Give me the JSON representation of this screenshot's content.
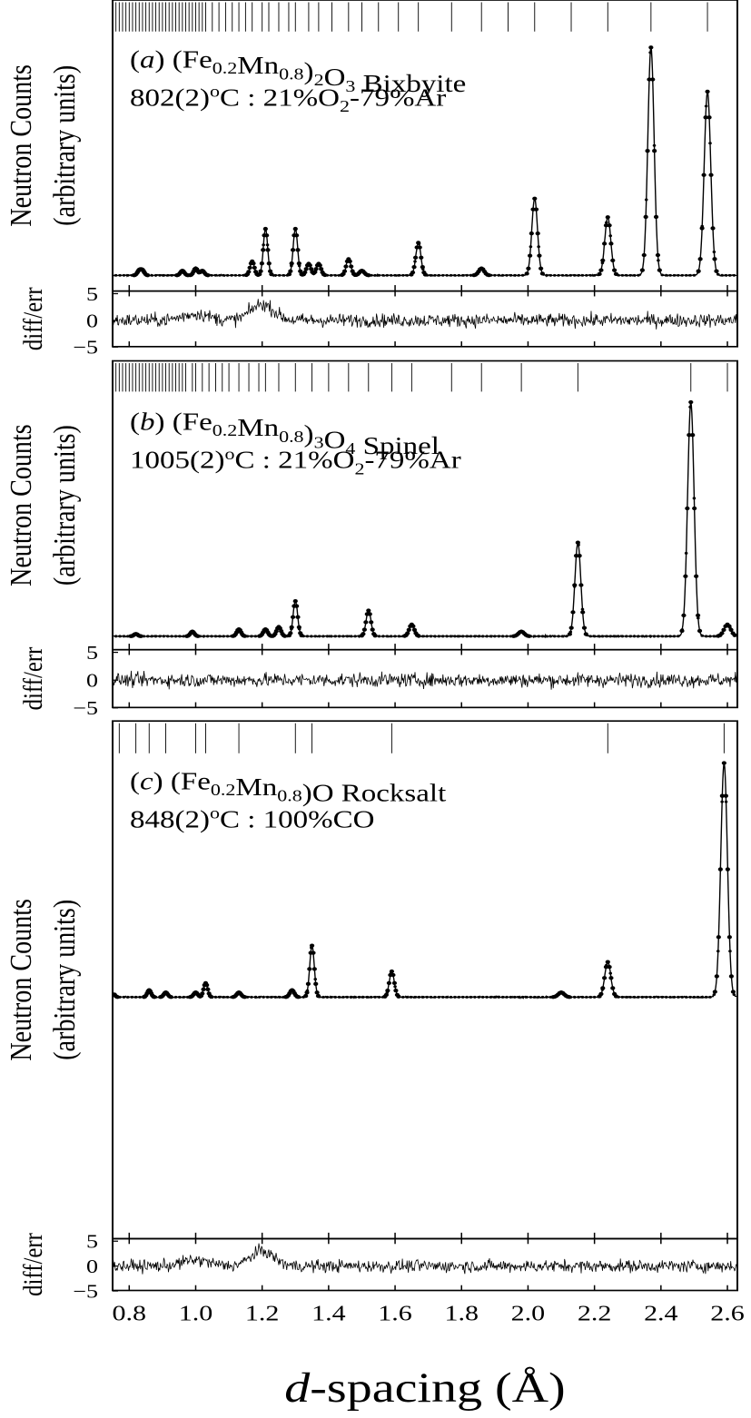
{
  "figure": {
    "xlabel_italic": "d",
    "xlabel_rest": "-spacing (Å)",
    "xlim": [
      0.75,
      2.63
    ],
    "xticks": [
      "0.8",
      "1.0",
      "1.2",
      "1.4",
      "1.6",
      "1.8",
      "2.0",
      "2.2",
      "2.4",
      "2.6"
    ],
    "xtick_values": [
      0.8,
      1.0,
      1.2,
      1.4,
      1.6,
      1.8,
      2.0,
      2.2,
      2.4,
      2.6
    ]
  },
  "chart_data": [
    {
      "type": "line",
      "panel": "a",
      "label_letter": "a",
      "label_phase": "(Fe0.2Mn0.8)2O3 Bixbyite",
      "label_conditions": "802(2)oC : 21%O2-79%Ar",
      "ylabel_line1": "Neutron Counts",
      "ylabel_line2": "(arbitrary units)",
      "diff_label": "diff/err",
      "diff_ticks": [
        "5",
        "0",
        "−5"
      ],
      "diff_tick_values": [
        5,
        0,
        -5
      ],
      "background": 0.03,
      "peaks": [
        {
          "d": 0.83,
          "h": 0.02
        },
        {
          "d": 0.84,
          "h": 0.02
        },
        {
          "d": 0.96,
          "h": 0.02
        },
        {
          "d": 1.0,
          "h": 0.03
        },
        {
          "d": 1.02,
          "h": 0.02
        },
        {
          "d": 1.17,
          "h": 0.06
        },
        {
          "d": 1.21,
          "h": 0.2
        },
        {
          "d": 1.3,
          "h": 0.2
        },
        {
          "d": 1.34,
          "h": 0.05
        },
        {
          "d": 1.37,
          "h": 0.05
        },
        {
          "d": 1.46,
          "h": 0.07
        },
        {
          "d": 1.5,
          "h": 0.02
        },
        {
          "d": 1.67,
          "h": 0.14
        },
        {
          "d": 1.86,
          "h": 0.03
        },
        {
          "d": 2.02,
          "h": 0.33
        },
        {
          "d": 2.24,
          "h": 0.25
        },
        {
          "d": 2.37,
          "h": 0.98
        },
        {
          "d": 2.54,
          "h": 0.79
        }
      ],
      "reflections": [
        0.76,
        0.77,
        0.78,
        0.79,
        0.8,
        0.81,
        0.82,
        0.83,
        0.84,
        0.85,
        0.86,
        0.87,
        0.88,
        0.89,
        0.9,
        0.91,
        0.92,
        0.93,
        0.94,
        0.95,
        0.96,
        0.97,
        0.98,
        0.99,
        1.0,
        1.01,
        1.02,
        1.03,
        1.05,
        1.07,
        1.09,
        1.11,
        1.13,
        1.15,
        1.17,
        1.2,
        1.22,
        1.25,
        1.28,
        1.3,
        1.34,
        1.37,
        1.41,
        1.46,
        1.5,
        1.55,
        1.61,
        1.67,
        1.77,
        1.86,
        1.94,
        2.02,
        2.13,
        2.24,
        2.37,
        2.54
      ]
    },
    {
      "type": "line",
      "panel": "b",
      "label_letter": "b",
      "label_phase": "(Fe0.2Mn0.8)3O4 Spinel",
      "label_conditions": "1005(2)oC : 21%O2-79%Ar",
      "ylabel_line1": "Neutron Counts",
      "ylabel_line2": "(arbitrary units)",
      "diff_label": "diff/err",
      "diff_ticks": [
        "5",
        "0",
        "−5"
      ],
      "diff_tick_values": [
        5,
        0,
        -5
      ],
      "background": 0.03,
      "peaks": [
        {
          "d": 0.82,
          "h": 0.01
        },
        {
          "d": 0.99,
          "h": 0.02
        },
        {
          "d": 1.13,
          "h": 0.03
        },
        {
          "d": 1.21,
          "h": 0.03
        },
        {
          "d": 1.25,
          "h": 0.04
        },
        {
          "d": 1.3,
          "h": 0.15
        },
        {
          "d": 1.52,
          "h": 0.11
        },
        {
          "d": 1.65,
          "h": 0.05
        },
        {
          "d": 1.98,
          "h": 0.02
        },
        {
          "d": 2.15,
          "h": 0.4
        },
        {
          "d": 2.49,
          "h": 1.0
        },
        {
          "d": 2.6,
          "h": 0.05
        }
      ],
      "reflections": [
        0.76,
        0.77,
        0.78,
        0.79,
        0.8,
        0.81,
        0.82,
        0.83,
        0.84,
        0.85,
        0.86,
        0.87,
        0.88,
        0.89,
        0.9,
        0.91,
        0.92,
        0.93,
        0.94,
        0.95,
        0.96,
        0.97,
        0.99,
        1.0,
        1.02,
        1.04,
        1.06,
        1.08,
        1.1,
        1.13,
        1.16,
        1.19,
        1.21,
        1.25,
        1.3,
        1.35,
        1.4,
        1.46,
        1.52,
        1.59,
        1.65,
        1.77,
        1.86,
        1.98,
        2.15,
        2.49,
        2.6
      ]
    },
    {
      "type": "line",
      "panel": "c",
      "label_letter": "c",
      "label_phase": "(Fe0.2Mn0.8)O Rocksalt",
      "label_conditions": "848(2)oC : 100%CO",
      "ylabel_line1": "Neutron Counts",
      "ylabel_line2": "(arbitrary units)",
      "diff_label": "diff/err",
      "diff_ticks": [
        "5",
        "0",
        "−5"
      ],
      "diff_tick_values": [
        5,
        0,
        -5
      ],
      "background": 0.03,
      "peaks": [
        {
          "d": 0.75,
          "h": 0.02
        },
        {
          "d": 0.86,
          "h": 0.03
        },
        {
          "d": 0.91,
          "h": 0.02
        },
        {
          "d": 1.0,
          "h": 0.02
        },
        {
          "d": 1.03,
          "h": 0.06
        },
        {
          "d": 1.13,
          "h": 0.02
        },
        {
          "d": 1.29,
          "h": 0.03
        },
        {
          "d": 1.35,
          "h": 0.22
        },
        {
          "d": 1.59,
          "h": 0.11
        },
        {
          "d": 2.1,
          "h": 0.02
        },
        {
          "d": 2.24,
          "h": 0.15
        },
        {
          "d": 2.59,
          "h": 1.0
        }
      ],
      "reflections": [
        0.77,
        0.82,
        0.86,
        0.91,
        1.0,
        1.03,
        1.13,
        1.3,
        1.35,
        1.59,
        2.24,
        2.59
      ]
    }
  ]
}
